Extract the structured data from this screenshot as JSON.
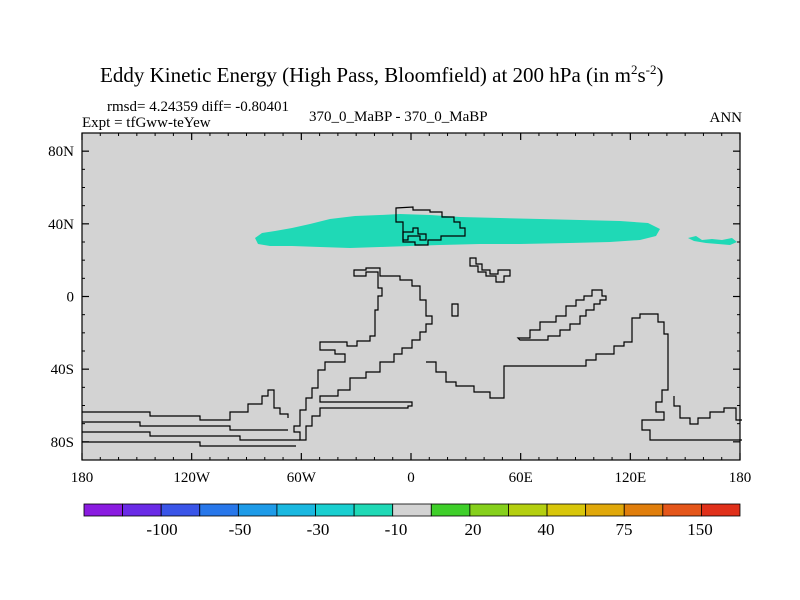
{
  "chart_data": {
    "type": "map",
    "projection": "cylindrical-equidistant",
    "title_main": "Eddy Kinetic Energy (High Pass, Bloomfield) at 200 hPa (in m",
    "title_unit_m_exp": "2",
    "title_unit_s": "s",
    "title_unit_s_exp": "-2",
    "title_close": ")",
    "stats_text": "rmsd= 4.24359 diff= -0.80401",
    "expt_text": "Expt = tfGww-teYew",
    "center_label": "370_0_MaBP - 370_0_MaBP",
    "season_label": "ANN",
    "lon_range": [
      -180,
      180
    ],
    "lat_range": [
      -90,
      90
    ],
    "lon_ticks": [
      -180,
      -120,
      -60,
      0,
      60,
      120,
      180
    ],
    "lon_tick_labels": [
      "180",
      "120W",
      "60W",
      "0",
      "60E",
      "120E",
      "180"
    ],
    "lat_ticks": [
      80,
      40,
      0,
      -40,
      -80
    ],
    "lat_tick_labels": [
      "80N",
      "40N",
      "0",
      "40S",
      "80S"
    ],
    "background_color": "#d3d3d3",
    "anomaly_patch": {
      "level": "-10 to -30",
      "color": "#1fd9b6",
      "lat_center": 35,
      "lon_range": [
        -85,
        135
      ]
    },
    "small_patch": {
      "color": "#1fd9b6",
      "lon_range": [
        150,
        175
      ],
      "lat_center": 30
    },
    "colorbar": {
      "colors": [
        "#8a1be0",
        "#6a2be6",
        "#3a55e8",
        "#2877ea",
        "#1e9be8",
        "#1ab8e0",
        "#19cfd0",
        "#1fd9b6",
        "#d3d3d3",
        "#3fcf2a",
        "#86d01c",
        "#b4cf10",
        "#d8c60a",
        "#e0a80a",
        "#e07e0c",
        "#e4561a",
        "#e0301a"
      ],
      "labels": [
        "-100",
        "-50",
        "-30",
        "-10",
        "20",
        "40",
        "75",
        "150"
      ]
    }
  }
}
